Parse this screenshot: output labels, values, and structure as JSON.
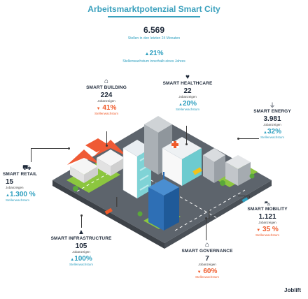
{
  "title": "Arbeitsmarktpotenzial Smart City",
  "summary": {
    "jobs_value": "6.569",
    "jobs_caption": "Stellen in den letzten 24 Monaten",
    "growth_value": "21%",
    "growth_caption": "Stellenwachstum innerhalb eines Jahres"
  },
  "sectors": {
    "building": {
      "name": "SMART BUILDING",
      "value": "224",
      "value_caption": "Jobanzeigen",
      "growth": "41%",
      "growth_caption": "Stellenwachstum",
      "direction": "down"
    },
    "healthcare": {
      "name": "SMART HEALTHCARE",
      "value": "22",
      "value_caption": "Jobanzeigen",
      "growth": "20%",
      "growth_caption": "Stellenwachstum",
      "direction": "up"
    },
    "energy": {
      "name": "SMART ENERGY",
      "value": "3.981",
      "value_caption": "Jobanzeigen",
      "growth": "32%",
      "growth_caption": "Stellenwachstum",
      "direction": "up"
    },
    "retail": {
      "name": "SMART RETAIL",
      "value": "15",
      "value_caption": "Jobanzeigen",
      "growth": "1.300 %",
      "growth_caption": "Stellenwachstum",
      "direction": "up"
    },
    "mobility": {
      "name": "SMART MOBILITY",
      "value": "1.121",
      "value_caption": "Jobanzeigen",
      "growth": "35 %",
      "growth_caption": "Stellenwachstum",
      "direction": "down"
    },
    "infrastructure": {
      "name": "SMART INFRASTRUCTURE",
      "value": "105",
      "value_caption": "Jobanzeigen",
      "growth": "100%",
      "growth_caption": "Stellenwachstum",
      "direction": "up"
    },
    "governance": {
      "name": "SMART GOVERNANCE",
      "value": "7",
      "value_caption": "Jobanzeigen",
      "growth": "60%",
      "growth_caption": "Stellenwachstum",
      "direction": "down"
    }
  },
  "brand": "Joblift",
  "colors": {
    "accent": "#2d9fbf",
    "decline": "#f05b2b",
    "text": "#1f2a3a",
    "ground": "#5f6770"
  },
  "icons": [
    "house-icon",
    "health-hand-icon",
    "plug-icon",
    "cart-icon",
    "car-icon",
    "road-icon",
    "government-building-icon"
  ]
}
